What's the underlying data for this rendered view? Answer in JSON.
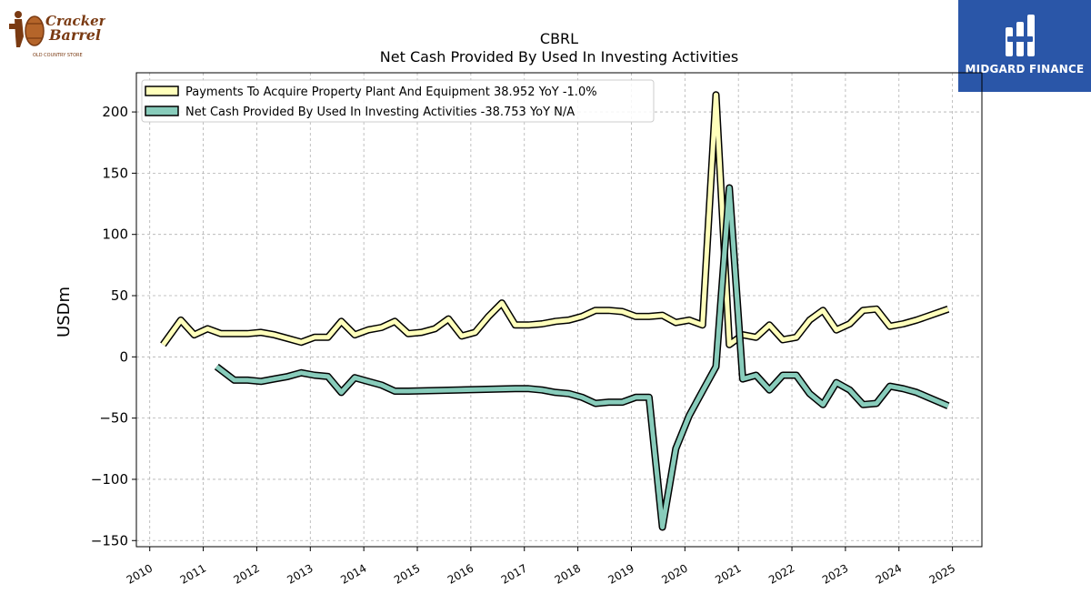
{
  "header": {
    "left_logo": {
      "line1": "Cracker",
      "line2": "Barrel",
      "tagline": "OLD COUNTRY STORE"
    },
    "right_logo": {
      "brand": "MIDGARD FINANCE"
    }
  },
  "chart_data": {
    "type": "line",
    "title": "CBRL",
    "subtitle": "Net Cash Provided By Used In Investing Activities",
    "ylabel": "USDm",
    "xlabel": "",
    "xlim": [
      2009.75,
      2025.55
    ],
    "ylim": [
      -155,
      232
    ],
    "yticks": [
      -150,
      -100,
      -50,
      0,
      50,
      100,
      150,
      200
    ],
    "xticks": [
      "2010",
      "2011",
      "2012",
      "2013",
      "2014",
      "2015",
      "2016",
      "2017",
      "2018",
      "2019",
      "2020",
      "2021",
      "2022",
      "2023",
      "2024",
      "2025"
    ],
    "grid": true,
    "legend_position": "top-left",
    "series": [
      {
        "name": "Payments To Acquire Property Plant And Equipment",
        "legend_label": "Payments To Acquire Property Plant And Equipment  38.952 YoY -1.0%",
        "color": "#ffffbb",
        "points": [
          [
            2010.25,
            10
          ],
          [
            2010.58,
            30
          ],
          [
            2010.83,
            18
          ],
          [
            2011.08,
            23
          ],
          [
            2011.33,
            19
          ],
          [
            2011.58,
            19
          ],
          [
            2011.83,
            19
          ],
          [
            2012.08,
            20
          ],
          [
            2012.33,
            18
          ],
          [
            2012.58,
            15
          ],
          [
            2012.83,
            12
          ],
          [
            2013.08,
            16
          ],
          [
            2013.33,
            16
          ],
          [
            2013.58,
            29
          ],
          [
            2013.83,
            18
          ],
          [
            2014.08,
            22
          ],
          [
            2014.33,
            24
          ],
          [
            2014.58,
            29
          ],
          [
            2014.83,
            19
          ],
          [
            2015.08,
            20
          ],
          [
            2015.33,
            23
          ],
          [
            2015.58,
            31
          ],
          [
            2015.83,
            17
          ],
          [
            2016.08,
            20
          ],
          [
            2016.33,
            33
          ],
          [
            2016.58,
            44
          ],
          [
            2016.83,
            26
          ],
          [
            2017.08,
            26
          ],
          [
            2017.33,
            27
          ],
          [
            2017.58,
            29
          ],
          [
            2017.83,
            30
          ],
          [
            2018.08,
            33
          ],
          [
            2018.33,
            38
          ],
          [
            2018.58,
            38
          ],
          [
            2018.83,
            37
          ],
          [
            2019.08,
            33
          ],
          [
            2019.33,
            33
          ],
          [
            2019.58,
            34
          ],
          [
            2019.83,
            28
          ],
          [
            2020.08,
            30
          ],
          [
            2020.33,
            26
          ],
          [
            2020.58,
            214
          ],
          [
            2020.83,
            10
          ],
          [
            2021.08,
            18
          ],
          [
            2021.33,
            16
          ],
          [
            2021.58,
            26
          ],
          [
            2021.83,
            14
          ],
          [
            2022.08,
            16
          ],
          [
            2022.33,
            30
          ],
          [
            2022.58,
            38
          ],
          [
            2022.83,
            22
          ],
          [
            2023.08,
            27
          ],
          [
            2023.33,
            38
          ],
          [
            2023.58,
            39
          ],
          [
            2023.83,
            25
          ],
          [
            2024.08,
            27
          ],
          [
            2024.33,
            30
          ],
          [
            2024.92,
            39
          ]
        ]
      },
      {
        "name": "Net Cash Provided By Used In Investing Activities",
        "legend_label": "Net Cash Provided By Used In Investing Activities  -38.753 YoY N/A",
        "color": "#88ccbb",
        "points": [
          [
            2011.25,
            -8
          ],
          [
            2011.58,
            -19
          ],
          [
            2011.83,
            -19
          ],
          [
            2012.08,
            -20
          ],
          [
            2012.33,
            -18
          ],
          [
            2012.58,
            -16
          ],
          [
            2012.83,
            -13
          ],
          [
            2013.08,
            -15
          ],
          [
            2013.33,
            -16
          ],
          [
            2013.58,
            -29
          ],
          [
            2013.83,
            -17
          ],
          [
            2014.08,
            -20
          ],
          [
            2014.33,
            -23
          ],
          [
            2014.58,
            -28
          ],
          [
            2014.83,
            -28
          ],
          [
            2016.83,
            -26
          ],
          [
            2017.08,
            -26
          ],
          [
            2017.33,
            -27
          ],
          [
            2017.58,
            -29
          ],
          [
            2017.83,
            -30
          ],
          [
            2018.08,
            -33
          ],
          [
            2018.33,
            -38
          ],
          [
            2018.58,
            -37
          ],
          [
            2018.83,
            -37
          ],
          [
            2019.08,
            -33
          ],
          [
            2019.33,
            -33
          ],
          [
            2019.58,
            -139
          ],
          [
            2019.83,
            -75
          ],
          [
            2020.08,
            -48
          ],
          [
            2020.33,
            -28
          ],
          [
            2020.58,
            -8
          ],
          [
            2020.83,
            138
          ],
          [
            2021.08,
            -18
          ],
          [
            2021.33,
            -15
          ],
          [
            2021.58,
            -27
          ],
          [
            2021.83,
            -15
          ],
          [
            2022.08,
            -15
          ],
          [
            2022.33,
            -30
          ],
          [
            2022.58,
            -39
          ],
          [
            2022.83,
            -21
          ],
          [
            2023.08,
            -27
          ],
          [
            2023.33,
            -39
          ],
          [
            2023.58,
            -38
          ],
          [
            2023.83,
            -24
          ],
          [
            2024.08,
            -26
          ],
          [
            2024.33,
            -29
          ],
          [
            2024.92,
            -40
          ]
        ]
      }
    ]
  }
}
